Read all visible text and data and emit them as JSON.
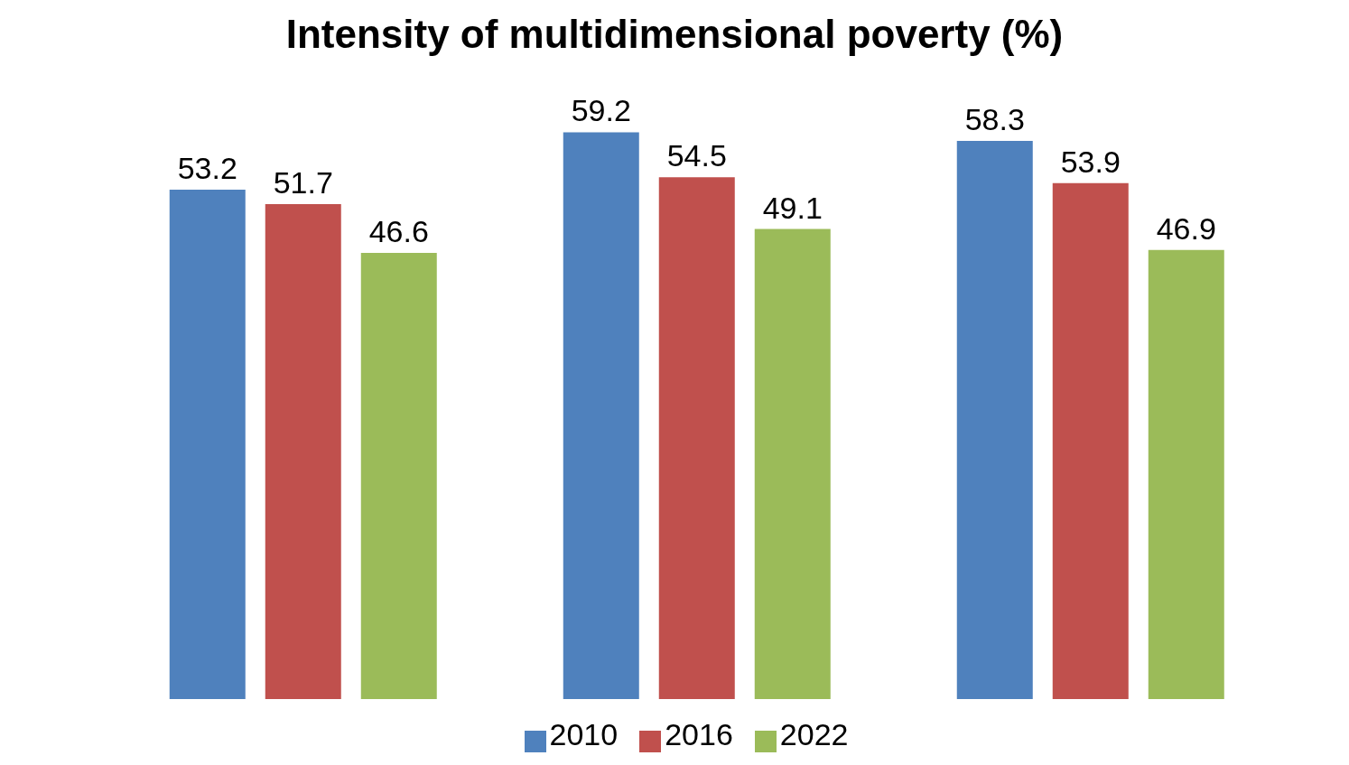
{
  "chart_data": {
    "type": "bar",
    "title": "Intensity of multidimensional poverty (%)",
    "categories": [
      null,
      null,
      null
    ],
    "series": [
      {
        "name": "2010",
        "color": "#4f81bd",
        "values": [
          53.2,
          59.2,
          58.3
        ]
      },
      {
        "name": "2016",
        "color": "#c0504d",
        "values": [
          51.7,
          54.5,
          53.9
        ]
      },
      {
        "name": "2022",
        "color": "#9bbb59",
        "values": [
          46.6,
          49.1,
          46.9
        ]
      }
    ],
    "data_labels": true,
    "legend": "bottom",
    "grid": false
  }
}
